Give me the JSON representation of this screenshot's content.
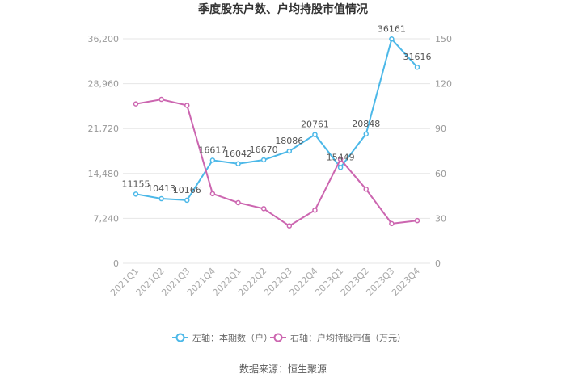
{
  "chart_data": {
    "type": "line",
    "title": "季度股东户数、户均持股市值情况",
    "categories": [
      "2021Q1",
      "2021Q2",
      "2021Q3",
      "2021Q4",
      "2022Q1",
      "2022Q2",
      "2022Q3",
      "2022Q4",
      "2023Q1",
      "2023Q2",
      "2023Q3",
      "2023Q4"
    ],
    "left_axis": {
      "ticks": [
        "0",
        "7,240",
        "14,480",
        "21,720",
        "28,960",
        "36,200"
      ],
      "ylim": [
        0,
        36200
      ]
    },
    "right_axis": {
      "ticks": [
        "0",
        "30",
        "60",
        "90",
        "120",
        "150"
      ],
      "ylim": [
        0,
        150
      ]
    },
    "series": [
      {
        "name": "左轴：本期数（户）",
        "axis": "left",
        "color": "#4cb8e8",
        "values": [
          11155,
          10413,
          10166,
          16617,
          16042,
          16670,
          18086,
          20761,
          15449,
          20848,
          36161,
          31616
        ],
        "labels": [
          "11155",
          "10413",
          "10166",
          "16617",
          "16042",
          "16670",
          "18086",
          "20761",
          "15449",
          "20848",
          "36161",
          "31616"
        ]
      },
      {
        "name": "右轴：户均持股市值（万元）",
        "axis": "right",
        "color": "#cc66b0",
        "values": [
          106.5,
          109.5,
          105.5,
          46.5,
          40.5,
          36.5,
          25,
          35.5,
          69.5,
          49.5,
          26.5,
          28.5
        ]
      }
    ],
    "grid": true,
    "legend_position": "bottom"
  },
  "source": "数据来源：恒生聚源"
}
